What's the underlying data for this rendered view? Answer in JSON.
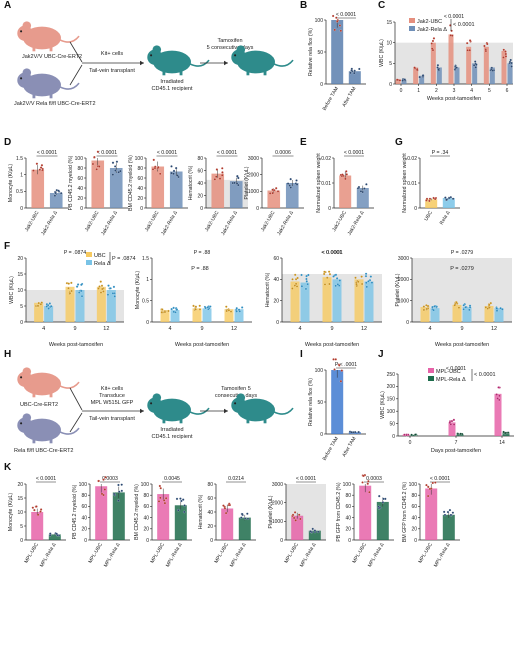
{
  "panel_letters": [
    "A",
    "B",
    "C",
    "D",
    "E",
    "G",
    "F",
    "H",
    "I",
    "J",
    "K"
  ],
  "colors": {
    "ubc": "#e58f7e",
    "rela": "#6f8fb8",
    "ubc_f": "#f6c95f",
    "rela_f": "#79c3e6",
    "mpl_ubc": "#e663a8",
    "mpl_rela": "#1d6c4b",
    "mouse_pink": "#e79b8d",
    "mouse_blue": "#8a8fb5",
    "mouse_teal": "#2e8b8b"
  },
  "panel_a": {
    "donor1": "Jak2V/V UBC-Cre-ERT2",
    "donor2": "Jak2V/V Rela fl/fl UBC-Cre-ERT2",
    "transfer": "Kit+ cells",
    "transplant": "Tail-vein transplant",
    "recipient_line1": "Irradiated",
    "recipient_line2": "CD45.1 recipient",
    "tam_line1": "Tamoxifen",
    "tam_line2": "5 consecutive days"
  },
  "panel_h": {
    "donor1": "UBC-Cre-ERT2",
    "donor2": "Rela fl/fl UBC-Cre-ERT2",
    "transfer1": "Kit+ cells",
    "transfer2": "Transduce",
    "transfer3": "MPL W515L GFP",
    "transplant": "Tail-vein transplant",
    "recipient_line1": "Irradiated",
    "recipient_line2": "CD45.1 recipient",
    "tam_line1": "Tamoxifen 5",
    "tam_line2": "consecutive days"
  },
  "chart_data": [
    {
      "id": "B",
      "type": "bar",
      "pvalue": "< 0.0001",
      "ylabel": "Relative rela flox (%)",
      "categories": [
        "Before TAM",
        "After TAM"
      ],
      "values": [
        100,
        20
      ],
      "ylim": [
        0,
        100
      ],
      "yticks": [
        0,
        50,
        100
      ]
    },
    {
      "id": "C",
      "type": "line",
      "pvalue": "< 0.0001",
      "ylabel": "WBC (K/μL)",
      "xlabel": "Weeks post-tamoxifen",
      "x": [
        0,
        1,
        2,
        3,
        4,
        5,
        6
      ],
      "ylim": [
        0,
        15
      ],
      "yticks": [
        0,
        5,
        10,
        15
      ],
      "series": [
        {
          "name": "Jak2-UBC",
          "values": [
            1,
            4,
            10,
            12,
            9,
            9,
            8
          ]
        },
        {
          "name": "Jak2-Rela Δ",
          "values": [
            1,
            2,
            4,
            4,
            5,
            4,
            5
          ]
        }
      ]
    },
    {
      "id": "D1",
      "type": "bar",
      "pvalue": "< 0.0001",
      "ylabel": "Monocyte (K/μL)",
      "categories": [
        "Jak2-UBC",
        "Jak2-Rela Δ"
      ],
      "values": [
        1.15,
        0.45
      ],
      "ylim": [
        0,
        1.5
      ],
      "yticks": [
        0,
        0.5,
        1,
        1.5
      ]
    },
    {
      "id": "D2",
      "type": "bar",
      "pvalue": "< 0.0001",
      "ylabel": "PB CD45.2 myeloid (%)",
      "categories": [
        "Jak2-UBC",
        "Jak2-Rela Δ"
      ],
      "values": [
        95,
        80
      ],
      "ylim": [
        0,
        100
      ],
      "yticks": [
        0,
        20,
        40,
        60,
        80,
        100
      ]
    },
    {
      "id": "D3",
      "type": "bar",
      "pvalue": "< 0.0001",
      "ylabel": "BM CD45.2 myeloid (%)",
      "categories": [
        "Jak2-UBC",
        "Jak2-Rela Δ"
      ],
      "values": [
        83,
        73
      ],
      "ylim": [
        0,
        100
      ],
      "yticks": [
        0,
        20,
        40,
        60,
        80,
        100
      ]
    },
    {
      "id": "D4",
      "type": "bar",
      "pvalue": "< 0.0001",
      "ylabel": "Hematocrit (%)",
      "categories": [
        "Jak2-UBC",
        "Jak2-Rela Δ"
      ],
      "values": [
        55,
        43
      ],
      "ylim": [
        0,
        80
      ],
      "yticks": [
        0,
        20,
        40,
        60,
        80
      ]
    },
    {
      "id": "D5",
      "type": "bar",
      "pvalue": "0.0006",
      "ylabel": "Platelet (K/μL)",
      "categories": [
        "Jak2-UBC",
        "Jak2-Rela Δ"
      ],
      "values": [
        1050,
        1500
      ],
      "ylim": [
        0,
        3000
      ],
      "yticks": [
        0,
        1000,
        2000,
        3000
      ]
    },
    {
      "id": "E",
      "type": "bar",
      "pvalue": "< 0.0001",
      "ylabel": "Normalized spleen weight",
      "categories": [
        "Jak2-UBC",
        "Jak2-Rela Δ"
      ],
      "values": [
        0.013,
        0.008
      ],
      "ylim": [
        0,
        0.02
      ],
      "yticks": [
        0,
        0.01,
        0.02
      ]
    },
    {
      "id": "G",
      "type": "bar",
      "pvalue": "P = .34",
      "ylabel": "Normalized spleen weight",
      "categories": [
        "UBC",
        "Rela Δ"
      ],
      "values": [
        0.0035,
        0.004
      ],
      "ylim": [
        0,
        0.02
      ],
      "yticks": [
        0,
        0.01,
        0.02
      ]
    },
    {
      "id": "F1",
      "type": "bar",
      "pvalue": "P = .0874",
      "ylabel": "WBC (K/μL)",
      "legend": [
        "UBC",
        "Rela Δ"
      ],
      "categories": [
        "4",
        "9",
        "12"
      ],
      "series": [
        {
          "name": "UBC",
          "values": [
            6,
            11,
            11
          ]
        },
        {
          "name": "Rela Δ",
          "values": [
            5,
            10,
            10
          ]
        }
      ],
      "ylim": [
        0,
        20
      ],
      "yticks": [
        0,
        5,
        10,
        15,
        20
      ]
    },
    {
      "id": "F2",
      "type": "bar",
      "pvalue": "P = .88",
      "ylabel": "Monocyte (K/μL)",
      "categories": [
        "4",
        "9",
        "12"
      ],
      "series": [
        {
          "name": "UBC",
          "values": [
            0.28,
            0.32,
            0.3
          ]
        },
        {
          "name": "Rela Δ",
          "values": [
            0.28,
            0.32,
            0.3
          ]
        }
      ],
      "ylim": [
        0,
        1.5
      ],
      "yticks": [
        0,
        0.5,
        1,
        1.5
      ]
    },
    {
      "id": "F3",
      "type": "bar",
      "pvalue": "< 0.0001",
      "ylabel": "Hematocrit (%)",
      "categories": [
        "4",
        "9",
        "12"
      ],
      "series": [
        {
          "name": "UBC",
          "values": [
            38,
            42,
            40
          ]
        },
        {
          "name": "Rela Δ",
          "values": [
            37,
            40,
            38
          ]
        }
      ],
      "ylim": [
        0,
        60
      ],
      "yticks": [
        0,
        20,
        40,
        60
      ]
    },
    {
      "id": "F4",
      "type": "bar",
      "pvalue": "P = .0279",
      "ylabel": "Platelet (K/μL)",
      "categories": [
        "4",
        "9",
        "12"
      ],
      "series": [
        {
          "name": "UBC",
          "values": [
            700,
            800,
            750
          ]
        },
        {
          "name": "Rela Δ",
          "values": [
            650,
            700,
            650
          ]
        }
      ],
      "ylim": [
        0,
        3000
      ],
      "yticks": [
        0,
        1000,
        2000,
        3000
      ]
    },
    {
      "id": "F_x",
      "xlabel": "Weeks post-tamoxifen"
    },
    {
      "id": "I",
      "type": "bar",
      "pvalue": "P < .0001",
      "ylabel": "Relative rela flox (%)",
      "categories": [
        "Before TAM",
        "After TAM"
      ],
      "values": [
        100,
        3
      ],
      "ylim": [
        0,
        100
      ],
      "yticks": [
        0,
        50,
        100
      ]
    },
    {
      "id": "J",
      "type": "line",
      "pvalue": "< 0.0001",
      "ylabel": "WBC (K/μL)",
      "xlabel": "Days post-tamoxifen",
      "x": [
        0,
        7,
        14
      ],
      "ylim": [
        0,
        250
      ],
      "yticks": [
        0,
        50,
        100,
        150,
        200,
        250
      ],
      "series": [
        {
          "name": "MPL-UBC",
          "values": [
            5,
            55,
            170
          ]
        },
        {
          "name": "MPL-Rela Δ",
          "values": [
            5,
            8,
            15
          ]
        }
      ]
    },
    {
      "id": "K1",
      "type": "bar",
      "pvalue": "< 0.0001",
      "ylabel": "Monocyte (K/μL)",
      "categories": [
        "MPL-UBC",
        "MPL-Rela Δ"
      ],
      "values": [
        10,
        2
      ],
      "ylim": [
        0,
        20
      ],
      "yticks": [
        0,
        5,
        10,
        15,
        20
      ]
    },
    {
      "id": "K2",
      "type": "bar",
      "pvalue": "0.0003",
      "ylabel": "PB CD45.2 myeloid (%)",
      "categories": [
        "MPL-UBC",
        "MPL-Rela Δ"
      ],
      "values": [
        96,
        85
      ],
      "ylim": [
        0,
        100
      ],
      "yticks": [
        0,
        20,
        40,
        60,
        80,
        100
      ]
    },
    {
      "id": "K3",
      "type": "bar",
      "pvalue": "0.0045",
      "ylabel": "BM CD45.2 myeloid (%)",
      "categories": [
        "MPL-UBC",
        "MPL-Rela Δ"
      ],
      "values": [
        82,
        62
      ],
      "ylim": [
        0,
        100
      ],
      "yticks": [
        0,
        20,
        40,
        60,
        80,
        100
      ]
    },
    {
      "id": "K4",
      "type": "bar",
      "pvalue": "0.0214",
      "ylabel": "Hematocrit (%)",
      "categories": [
        "MPL-UBC",
        "MPL-Rela Δ"
      ],
      "values": [
        45,
        32
      ],
      "ylim": [
        0,
        80
      ],
      "yticks": [
        0,
        20,
        40,
        60,
        80
      ]
    },
    {
      "id": "K5",
      "type": "bar",
      "pvalue": "< 0.0001",
      "ylabel": "Platelet (K/μL)",
      "categories": [
        "MPL-UBC",
        "MPL-Rela Δ"
      ],
      "values": [
        1300,
        500
      ],
      "ylim": [
        0,
        3000
      ],
      "yticks": [
        0,
        1000,
        2000,
        3000
      ]
    },
    {
      "id": "K6",
      "type": "bar",
      "pvalue": "0.0003",
      "ylabel": "PB GFP from CD45.2 (%)",
      "categories": [
        "MPL-UBC",
        "MPL-Rela Δ"
      ],
      "values": [
        97,
        68
      ],
      "ylim": [
        0,
        100
      ],
      "yticks": [
        0,
        20,
        40,
        60,
        80,
        100
      ]
    },
    {
      "id": "K7",
      "type": "bar",
      "pvalue": "< 0.0001",
      "ylabel": "BM GFP from CD45.2 (%)",
      "categories": [
        "MPL-UBC",
        "MPL-Rela Δ"
      ],
      "values": [
        92,
        45
      ],
      "ylim": [
        0,
        100
      ],
      "yticks": [
        0,
        20,
        40,
        60,
        80,
        100
      ]
    }
  ]
}
